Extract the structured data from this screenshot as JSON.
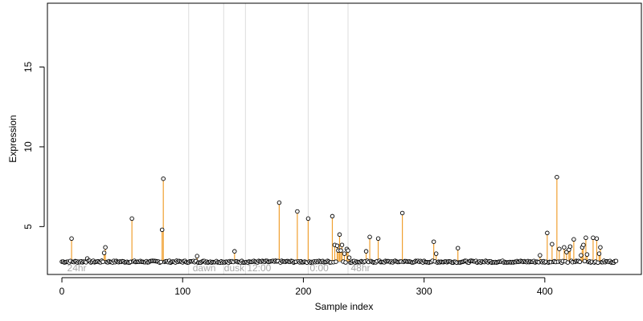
{
  "chart_data": {
    "type": "scatter",
    "title": "",
    "xlabel": "Sample index",
    "ylabel": "Expression",
    "xlim": [
      -12,
      480
    ],
    "ylim": [
      2,
      19
    ],
    "x_ticks": [
      0,
      100,
      200,
      300,
      400
    ],
    "y_ticks": [
      5,
      10,
      15
    ],
    "baseline": 2.8,
    "grid": false,
    "region_lines": [
      105,
      134,
      152,
      204,
      237
    ],
    "region_labels": [
      {
        "x": 3,
        "text": "24hr"
      },
      {
        "x": 107,
        "text": "dawn"
      },
      {
        "x": 133,
        "text": "dusk"
      },
      {
        "x": 152,
        "text": "12:00"
      },
      {
        "x": 204,
        "text": "0:00"
      },
      {
        "x": 238,
        "text": "48hr"
      }
    ],
    "colors": {
      "spike": "#f0a030",
      "baseline": "#b0c4de",
      "point_stroke": "#000000",
      "point_fill": "#ffffff",
      "region_line": "#dddddd",
      "region_text": "#aaaaaa"
    },
    "n_points": 460,
    "spikes": [
      [
        8,
        4.25
      ],
      [
        21,
        3.0
      ],
      [
        35,
        3.35
      ],
      [
        36,
        3.7
      ],
      [
        58,
        5.5
      ],
      [
        83,
        4.8
      ],
      [
        84,
        8.0
      ],
      [
        112,
        3.15
      ],
      [
        143,
        3.45
      ],
      [
        180,
        6.5
      ],
      [
        195,
        5.95
      ],
      [
        204,
        5.5
      ],
      [
        224,
        5.65
      ],
      [
        226,
        3.85
      ],
      [
        228,
        3.8
      ],
      [
        229,
        3.5
      ],
      [
        230,
        4.5
      ],
      [
        231,
        3.5
      ],
      [
        232,
        3.85
      ],
      [
        234,
        3.3
      ],
      [
        236,
        3.6
      ],
      [
        237,
        3.5
      ],
      [
        238,
        3.05
      ],
      [
        252,
        3.45
      ],
      [
        255,
        4.35
      ],
      [
        262,
        4.25
      ],
      [
        282,
        5.85
      ],
      [
        308,
        4.05
      ],
      [
        310,
        3.3
      ],
      [
        328,
        3.65
      ],
      [
        396,
        3.2
      ],
      [
        402,
        4.6
      ],
      [
        406,
        3.9
      ],
      [
        410,
        8.1
      ],
      [
        412,
        3.6
      ],
      [
        416,
        3.7
      ],
      [
        418,
        3.4
      ],
      [
        420,
        3.55
      ],
      [
        421,
        3.75
      ],
      [
        424,
        4.2
      ],
      [
        430,
        3.2
      ],
      [
        431,
        3.7
      ],
      [
        432,
        3.85
      ],
      [
        434,
        4.3
      ],
      [
        435,
        3.25
      ],
      [
        440,
        4.3
      ],
      [
        443,
        4.25
      ],
      [
        445,
        3.3
      ],
      [
        446,
        3.7
      ]
    ]
  }
}
